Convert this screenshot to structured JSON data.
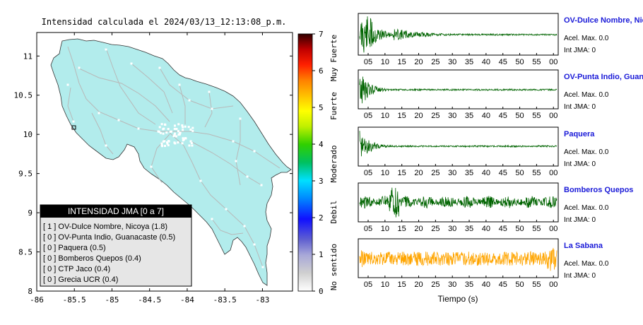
{
  "header": {
    "title": "Intensidad calculada el 2024/03/13_12:13:08_p.m."
  },
  "map": {
    "x_ticks": [
      "-86",
      "-85.5",
      "-85",
      "-84.5",
      "-84",
      "-83.5",
      "-83"
    ],
    "y_ticks": [
      "11",
      "10.5",
      "10",
      "9.5",
      "9",
      "8.5",
      "8"
    ],
    "land_color": "#b2ecec",
    "road_color": "#b8b8b8"
  },
  "colorbar": {
    "ticks": [
      "7",
      "6",
      "5",
      "4",
      "3",
      "2",
      "1",
      "0"
    ],
    "class_labels": [
      "Muy Fuerte",
      "Fuerte",
      "Moderado",
      "Debil",
      "No sentido"
    ]
  },
  "legend": {
    "title": "INTENSIDAD JMA [0 a 7]",
    "items": [
      "[ 1 ] OV-Dulce Nombre, Nicoya (1.8)",
      "[ 0 ] OV-Punta Indio, Guanacaste (0.5)",
      "[ 0 ] Paquera (0.5)",
      "[ 0 ] Bomberos Quepos (0.4)",
      "[ 0 ] CTP Jaco (0.4)",
      "[ 0 ] Grecia UCR (0.4)"
    ]
  },
  "waveforms": {
    "time_ticks": [
      "05",
      "10",
      "15",
      "20",
      "25",
      "30",
      "35",
      "40",
      "45",
      "50",
      "55",
      "00"
    ],
    "xlabel": "Tiempo (s)",
    "traces": [
      {
        "name": "OV-Dulce Nombre, Nico",
        "acel": "Acel. Max. 0.0",
        "int": "Int JMA: 0",
        "color": "#006400"
      },
      {
        "name": "OV-Punta Indio, Guana",
        "acel": "Acel. Max. 0.0",
        "int": "Int JMA: 0",
        "color": "#006400"
      },
      {
        "name": "Paquera",
        "acel": "Acel. Max. 0.0",
        "int": "Int JMA: 0",
        "color": "#006400"
      },
      {
        "name": "Bomberos Quepos",
        "acel": "Acel. Max. 0.0",
        "int": "Int JMA: 0",
        "color": "#006400"
      },
      {
        "name": "La Sabana",
        "acel": "Acel. Max. 0.0",
        "int": "Int JMA: 0",
        "color": "#ffa500"
      }
    ]
  },
  "chart_data": [
    {
      "type": "heatmap",
      "title": "Intensidad calculada el 2024/03/13_12:13:08_p.m.",
      "xlim": [
        -86,
        -82.6
      ],
      "ylim": [
        8,
        11.3
      ],
      "stations": [
        {
          "name": "OV-Dulce Nombre, Nicoya",
          "jma_class": 1,
          "value": 1.8,
          "lon": -85.5,
          "lat": 10.07
        }
      ],
      "colorbar_range": [
        0,
        7
      ]
    },
    {
      "type": "line",
      "xlabel": "Tiempo (s)",
      "xlim": [
        0,
        60
      ],
      "series": [
        {
          "name": "OV-Dulce Nombre, Nico",
          "acel_max": 0.0,
          "int_jma": 0
        },
        {
          "name": "OV-Punta Indio, Guana",
          "acel_max": 0.0,
          "int_jma": 0
        },
        {
          "name": "Paquera",
          "acel_max": 0.0,
          "int_jma": 0
        },
        {
          "name": "Bomberos Quepos",
          "acel_max": 0.0,
          "int_jma": 0
        },
        {
          "name": "La Sabana",
          "acel_max": 0.0,
          "int_jma": 0
        }
      ]
    }
  ]
}
